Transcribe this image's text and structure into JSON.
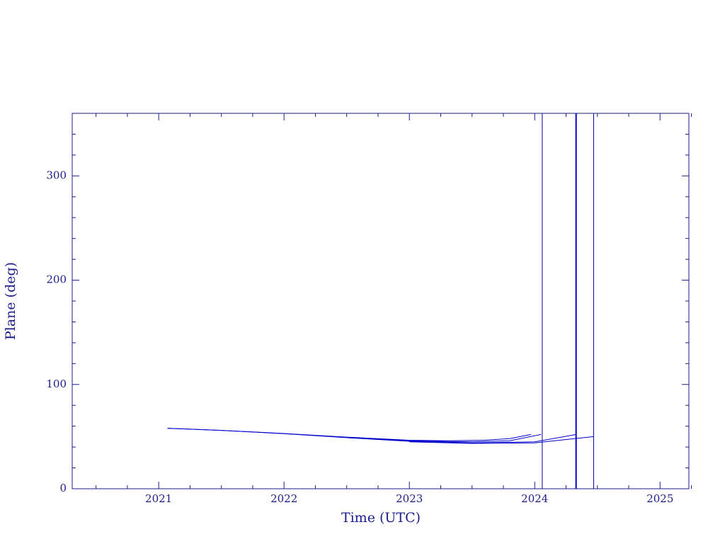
{
  "chart_data": {
    "type": "line",
    "x_label": "Time (UTC)",
    "y_label": "Plane (deg)",
    "xlim": [
      2020.31,
      2025.23
    ],
    "ylim": [
      0,
      360
    ],
    "xticks": [
      2021,
      2022,
      2023,
      2024,
      2025
    ],
    "yticks": [
      0,
      100,
      200,
      300
    ],
    "xminor_ticks": [
      2020.5,
      2020.75,
      2021.25,
      2021.5,
      2021.75,
      2022.25,
      2022.5,
      2022.75,
      2023.25,
      2023.5,
      2023.75,
      2024.25,
      2024.5,
      2024.75,
      2025.25
    ],
    "yminor_ticks": [
      20,
      40,
      60,
      80,
      120,
      140,
      160,
      180,
      220,
      240,
      260,
      280,
      320,
      340
    ],
    "axis_color": "#1c1c8c",
    "series": [
      {
        "color": "#0000cc",
        "x": [
          2021.07,
          2021.5,
          2022,
          2022.5,
          2023,
          2023.3,
          2023.6,
          2023.8,
          2023.97
        ],
        "values": [
          58,
          56,
          53,
          49.5,
          46.5,
          46,
          46.5,
          48,
          52
        ]
      },
      {
        "color": "#0000cc",
        "x": [
          2021.07,
          2021.5,
          2022,
          2022.5,
          2023,
          2023.5,
          2023.8,
          2024.05
        ],
        "values": [
          58,
          56,
          52.8,
          49,
          46,
          45,
          46,
          52
        ]
      },
      {
        "color": "#0000cc",
        "x": [
          2022.5,
          2023,
          2023.5,
          2024,
          2024.33
        ],
        "values": [
          49,
          45.5,
          44,
          45,
          52
        ]
      },
      {
        "color": "#0000cc",
        "x": [
          2023,
          2023.5,
          2024,
          2024.47
        ],
        "values": [
          45,
          43.5,
          44,
          50
        ]
      }
    ],
    "vlines": [
      {
        "x": 2024.06,
        "color": "#0000aa",
        "width": 1
      },
      {
        "x": 2024.33,
        "color": "#0000cc",
        "width": 2
      },
      {
        "x": 2024.47,
        "color": "#0000aa",
        "width": 1
      }
    ]
  }
}
